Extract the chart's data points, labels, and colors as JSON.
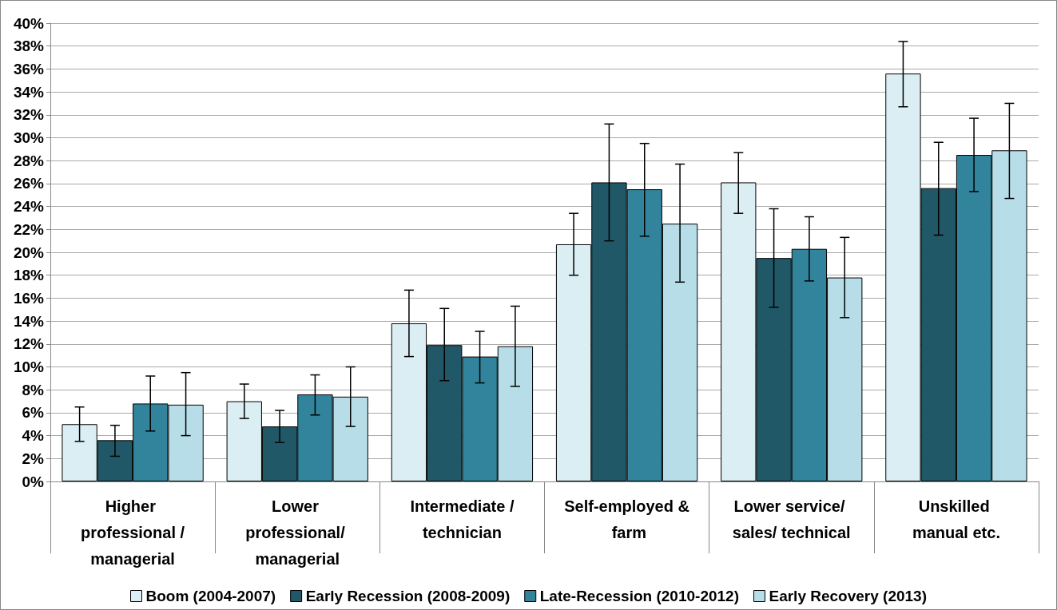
{
  "chart_data": {
    "type": "bar",
    "categories": [
      "Higher professional /managerial",
      "Lower professional/ managerial",
      "Intermediate /technician",
      "Self-employed & farm",
      "Lower service/ sales/ technical",
      "Unskilled manual etc."
    ],
    "series": [
      {
        "name": "Boom (2004-2007)",
        "color": "#daeef3",
        "values": [
          5.0,
          7.0,
          13.8,
          20.7,
          26.1,
          35.6
        ],
        "errors": [
          [
            3.5,
            6.5
          ],
          [
            5.5,
            8.5
          ],
          [
            10.9,
            16.7
          ],
          [
            18.0,
            23.4
          ],
          [
            23.4,
            28.7
          ],
          [
            32.7,
            38.4
          ]
        ]
      },
      {
        "name": "Early Recession (2008-2009)",
        "color": "#215868",
        "values": [
          3.6,
          4.8,
          11.9,
          26.1,
          19.5,
          25.6
        ],
        "errors": [
          [
            2.2,
            4.9
          ],
          [
            3.4,
            6.2
          ],
          [
            8.8,
            15.1
          ],
          [
            21.0,
            31.2
          ],
          [
            15.2,
            23.8
          ],
          [
            21.5,
            29.6
          ]
        ]
      },
      {
        "name": "Late-Recession (2010-2012)",
        "color": "#31849b",
        "values": [
          6.8,
          7.6,
          10.9,
          25.5,
          20.3,
          28.5
        ],
        "errors": [
          [
            4.4,
            9.2
          ],
          [
            5.8,
            9.3
          ],
          [
            8.6,
            13.1
          ],
          [
            21.4,
            29.5
          ],
          [
            17.5,
            23.1
          ],
          [
            25.3,
            31.7
          ]
        ]
      },
      {
        "name": "Early Recovery (2013)",
        "color": "#b7dde8",
        "values": [
          6.7,
          7.4,
          11.8,
          22.5,
          17.8,
          28.9
        ],
        "errors": [
          [
            4.0,
            9.5
          ],
          [
            4.8,
            10.0
          ],
          [
            8.3,
            15.3
          ],
          [
            17.4,
            27.7
          ],
          [
            14.3,
            21.3
          ],
          [
            24.7,
            33.0
          ]
        ]
      }
    ],
    "ylim": [
      0,
      40
    ],
    "yticks": [
      {
        "value": 0,
        "label": "0%"
      },
      {
        "value": 2,
        "label": "2%"
      },
      {
        "value": 4,
        "label": "4%"
      },
      {
        "value": 6,
        "label": "6%"
      },
      {
        "value": 8,
        "label": "8%"
      },
      {
        "value": 10,
        "label": "10%"
      },
      {
        "value": 12,
        "label": "12%"
      },
      {
        "value": 14,
        "label": "14%"
      },
      {
        "value": 16,
        "label": "16%"
      },
      {
        "value": 18,
        "label": "18%"
      },
      {
        "value": 20,
        "label": "20%"
      },
      {
        "value": 22,
        "label": "22%"
      },
      {
        "value": 24,
        "label": "24%"
      },
      {
        "value": 26,
        "label": "26%"
      },
      {
        "value": 28,
        "label": "28%"
      },
      {
        "value": 30,
        "label": "30%"
      },
      {
        "value": 32,
        "label": "32%"
      },
      {
        "value": 34,
        "label": "34%"
      },
      {
        "value": 36,
        "label": "36%"
      },
      {
        "value": 38,
        "label": "38%"
      },
      {
        "value": 40,
        "label": "40%"
      }
    ],
    "grid": "y",
    "legend": "bottom"
  }
}
